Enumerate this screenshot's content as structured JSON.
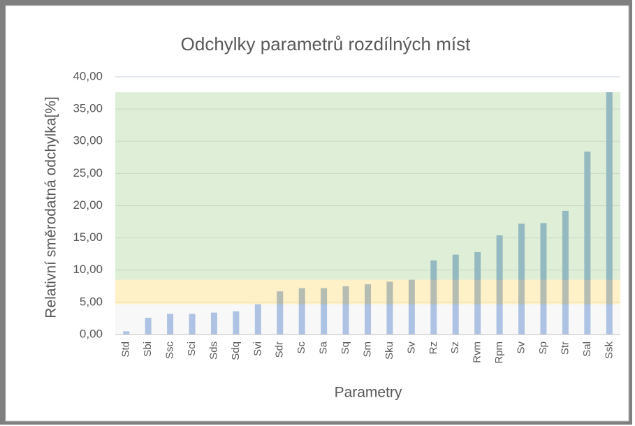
{
  "chart_data": {
    "type": "bar",
    "title": "Odchylky  parametrů rozdílných míst",
    "x_label": "Parametry",
    "y_label": "Relativní směrodatná odchylka[%]",
    "categories": [
      "Std",
      "Sbi",
      "Ssc",
      "Sci",
      "Sds",
      "Sdq",
      "Svi",
      "Sdr",
      "Sc",
      "Sa",
      "Sq",
      "Sm",
      "Sku",
      "Sv",
      "Rz",
      "Sz",
      "Rvm",
      "Rpm",
      "Sv",
      "Sp",
      "Str",
      "Sal",
      "Ssk"
    ],
    "values": [
      0.5,
      2.6,
      3.2,
      3.2,
      3.4,
      3.6,
      4.7,
      6.7,
      7.2,
      7.2,
      7.5,
      7.8,
      8.2,
      8.5,
      11.5,
      12.4,
      12.8,
      15.4,
      17.2,
      17.3,
      19.2,
      28.4,
      37.6
    ],
    "color": "#5b8ad0",
    "ylim": [
      0,
      40
    ],
    "yticks": [
      {
        "value": 0,
        "label": "0,00"
      },
      {
        "value": 5,
        "label": "5,00"
      },
      {
        "value": 10,
        "label": "10,00"
      },
      {
        "value": 15,
        "label": "15,00"
      },
      {
        "value": 20,
        "label": "20,00"
      },
      {
        "value": 25,
        "label": "25,00"
      },
      {
        "value": 30,
        "label": "30,00"
      },
      {
        "value": 35,
        "label": "35,00"
      },
      {
        "value": 40,
        "label": "40,00"
      }
    ],
    "grid": true,
    "bands": [
      {
        "from": 0,
        "to": 4.7,
        "color": "#f2f2f2"
      },
      {
        "from": 4.7,
        "to": 8.5,
        "color": "#ffe699"
      },
      {
        "from": 8.5,
        "to": 37.6,
        "color": "#c5e0b4"
      }
    ]
  }
}
